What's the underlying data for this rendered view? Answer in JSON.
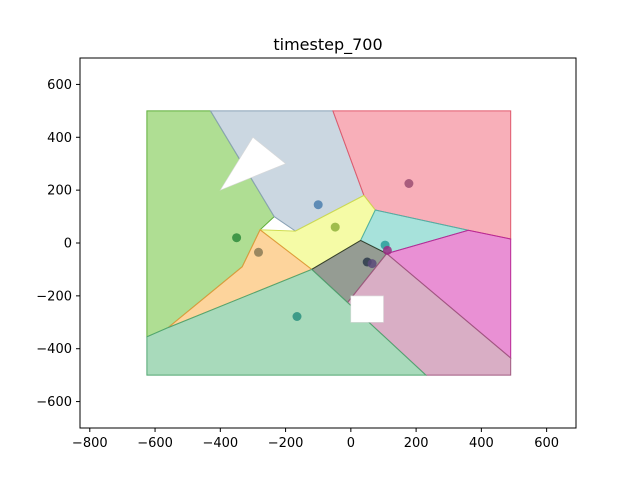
{
  "chart_data": {
    "type": "scatter",
    "title": "timestep_700",
    "xlabel": "",
    "ylabel": "",
    "xlim": [
      -830,
      690
    ],
    "ylim": [
      -700,
      700
    ],
    "grid": false,
    "xticks": [
      -800,
      -600,
      -400,
      -200,
      0,
      200,
      400,
      600
    ],
    "yticks": [
      -600,
      -400,
      -200,
      0,
      200,
      400,
      600
    ],
    "regions": [
      {
        "name": "green",
        "color": "#79c84b",
        "edge": "#5fae3a",
        "points": [
          [
            -625,
            500
          ],
          [
            -430,
            500
          ],
          [
            -235,
            100
          ],
          [
            -278,
            50
          ],
          [
            -333,
            -90
          ],
          [
            -560,
            -320
          ],
          [
            -625,
            -355
          ]
        ]
      },
      {
        "name": "steel",
        "color": "#a9bccd",
        "edge": "#8aa2b6",
        "points": [
          [
            -430,
            500
          ],
          [
            -55,
            500
          ],
          [
            40,
            180
          ],
          [
            -170,
            45
          ],
          [
            -235,
            100
          ]
        ]
      },
      {
        "name": "red",
        "color": "#f47a8a",
        "edge": "#e05a6d",
        "points": [
          [
            -55,
            500
          ],
          [
            490,
            500
          ],
          [
            490,
            15
          ],
          [
            360,
            48
          ],
          [
            75,
            125
          ],
          [
            40,
            180
          ]
        ]
      },
      {
        "name": "yellow",
        "color": "#eef96a",
        "edge": "#cfdc4f",
        "points": [
          [
            -170,
            45
          ],
          [
            40,
            180
          ],
          [
            75,
            125
          ],
          [
            30,
            10
          ],
          [
            -120,
            -100
          ],
          [
            -278,
            50
          ]
        ]
      },
      {
        "name": "teal",
        "color": "#6dcfc3",
        "edge": "#4fb1a5",
        "points": [
          [
            75,
            125
          ],
          [
            360,
            48
          ],
          [
            110,
            -40
          ],
          [
            30,
            10
          ]
        ]
      },
      {
        "name": "orange",
        "color": "#fbb75a",
        "edge": "#e09a3d",
        "points": [
          [
            -278,
            50
          ],
          [
            -120,
            -100
          ],
          [
            -560,
            -320
          ],
          [
            -333,
            -90
          ]
        ]
      },
      {
        "name": "darkgray",
        "color": "#4f5a4b",
        "edge": "#36402f",
        "points": [
          [
            30,
            10
          ],
          [
            110,
            -40
          ],
          [
            -10,
            -225
          ],
          [
            -120,
            -100
          ]
        ]
      },
      {
        "name": "magenta",
        "color": "#da46b8",
        "edge": "#b82896",
        "points": [
          [
            110,
            -40
          ],
          [
            360,
            48
          ],
          [
            490,
            15
          ],
          [
            490,
            -435
          ]
        ]
      },
      {
        "name": "mauve",
        "color": "#bf789e",
        "edge": "#a05a80",
        "points": [
          [
            110,
            -40
          ],
          [
            490,
            -435
          ],
          [
            490,
            -500
          ],
          [
            230,
            -500
          ],
          [
            -10,
            -225
          ]
        ]
      },
      {
        "name": "seafoam",
        "color": "#6ec18d",
        "edge": "#52a672",
        "points": [
          [
            -625,
            -355
          ],
          [
            -560,
            -320
          ],
          [
            -120,
            -100
          ],
          [
            -10,
            -225
          ],
          [
            230,
            -500
          ],
          [
            -625,
            -500
          ]
        ]
      }
    ],
    "obstacles": [
      {
        "shape": "triangle",
        "points": [
          [
            -400,
            200
          ],
          [
            -300,
            400
          ],
          [
            -200,
            300
          ]
        ]
      },
      {
        "shape": "rect",
        "points": [
          [
            0,
            -300
          ],
          [
            100,
            -300
          ],
          [
            100,
            -200
          ],
          [
            0,
            -200
          ]
        ]
      }
    ],
    "points": [
      {
        "x": -350,
        "y": 20,
        "color": "#2e8b3b"
      },
      {
        "x": -283,
        "y": -35,
        "color": "#8a7a56"
      },
      {
        "x": -100,
        "y": 145,
        "color": "#4c7fae"
      },
      {
        "x": -48,
        "y": 60,
        "color": "#8fb13c"
      },
      {
        "x": 178,
        "y": 225,
        "color": "#9b4f72"
      },
      {
        "x": 105,
        "y": -8,
        "color": "#2a9e9a"
      },
      {
        "x": 112,
        "y": -28,
        "color": "#9a2b81"
      },
      {
        "x": 50,
        "y": -72,
        "color": "#2c3a4a"
      },
      {
        "x": 65,
        "y": -78,
        "color": "#5a4a7a"
      },
      {
        "x": -165,
        "y": -278,
        "color": "#2a8f7f"
      }
    ]
  }
}
